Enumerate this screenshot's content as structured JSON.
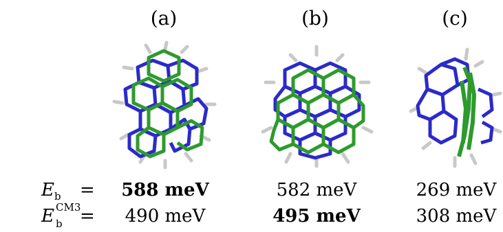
{
  "panels": [
    {
      "label": "(a)"
    },
    {
      "label": "(b)"
    },
    {
      "label": "(c)"
    }
  ],
  "rows": [
    {
      "symbol": "E",
      "subscript": "b",
      "superscript": "",
      "equals": "=",
      "values": [
        "588 meV",
        "582 meV",
        "269 meV"
      ],
      "bold": [
        true,
        false,
        false
      ]
    },
    {
      "symbol": "E",
      "subscript": "b",
      "superscript": "CM3",
      "equals": "=",
      "values": [
        "490 meV",
        "495 meV",
        "308 meV"
      ],
      "bold": [
        false,
        true,
        false
      ]
    }
  ],
  "colors": {
    "blue_layer": "#2b2bc8",
    "green_layer": "#2e9a2e",
    "hydrogen": "#c8c8c8"
  }
}
